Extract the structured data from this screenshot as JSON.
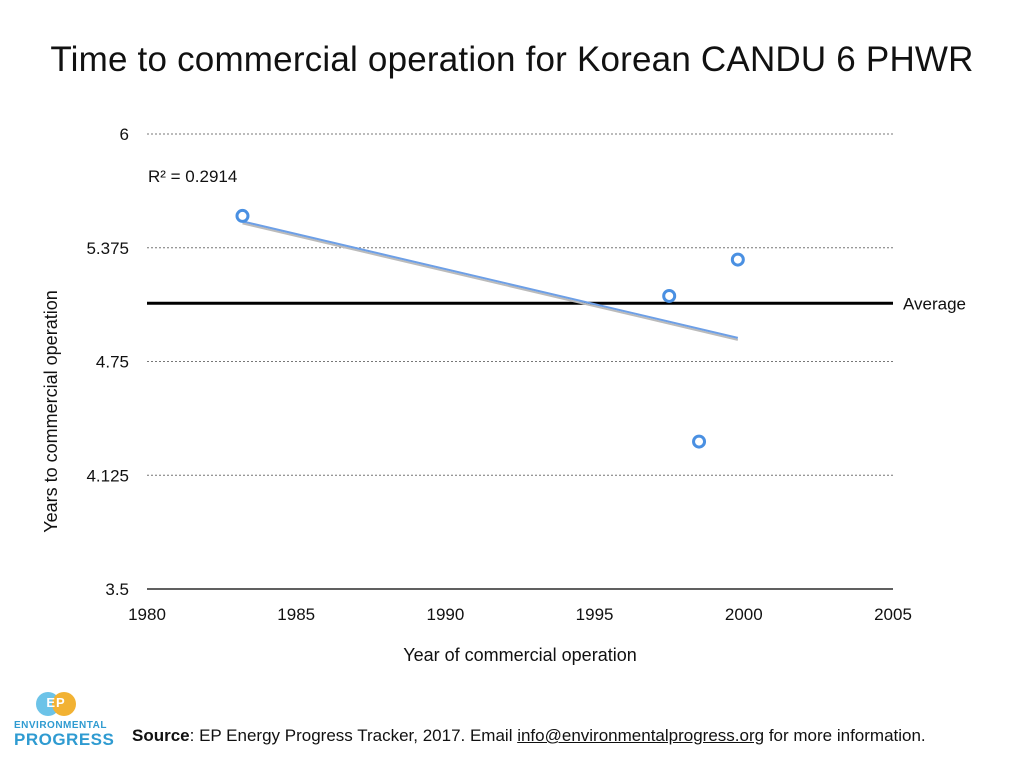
{
  "chart_data": {
    "type": "scatter",
    "title": "Time to commercial operation for Korean CANDU 6 PHWR",
    "xlabel": "Year of commercial operation",
    "ylabel": "Years to commercial operation",
    "xlim": [
      1980,
      2005
    ],
    "ylim": [
      3.5,
      6
    ],
    "x_ticks": [
      "1980",
      "1985",
      "1990",
      "1995",
      "2000",
      "2005"
    ],
    "y_ticks": [
      "6",
      "5.375",
      "4.75",
      "4.125",
      "3.5"
    ],
    "points": [
      {
        "x": 1983.2,
        "y": 5.55
      },
      {
        "x": 1997.5,
        "y": 5.11
      },
      {
        "x": 1998.5,
        "y": 4.31
      },
      {
        "x": 1999.8,
        "y": 5.31
      }
    ],
    "trendline": {
      "x_start": 1983.2,
      "y_start": 5.52,
      "x_end": 1999.8,
      "y_end": 4.88
    },
    "r_squared_label": "R² = 0.2914",
    "average": {
      "value": 5.07,
      "label": "Average"
    },
    "colors": {
      "points": "#4a90e2",
      "trend": "#6d9fe6",
      "average": "#000000"
    }
  },
  "source": {
    "label": "Source",
    "text_before": ": EP Energy Progress Tracker, 2017. Email ",
    "email": "info@environmentalprogress.org",
    "text_after": " for more information."
  },
  "logo": {
    "mark": "EP",
    "line1": "ENVIRONMENTAL",
    "line2": "PROGRESS"
  }
}
